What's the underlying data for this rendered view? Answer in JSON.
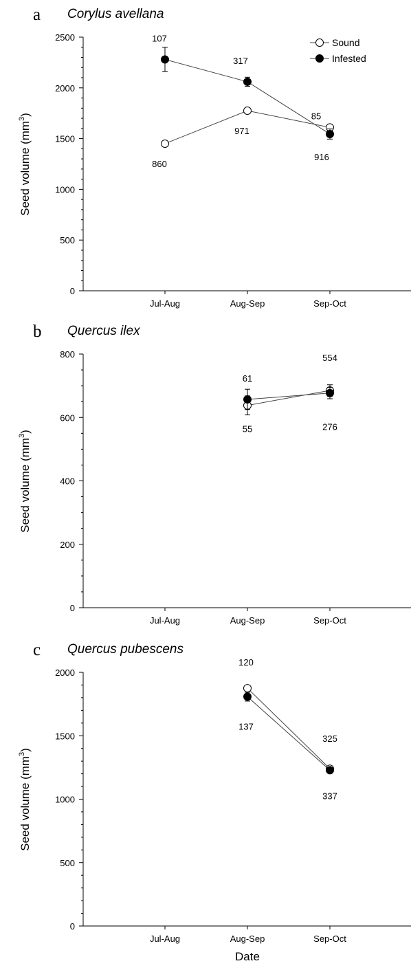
{
  "legend": {
    "sound": "Sound",
    "infested": "Infested"
  },
  "colors": {
    "sound_fill": "#ffffff",
    "infested_fill": "#000000",
    "line": "#444444"
  },
  "chart_data": [
    {
      "panel": "a",
      "title": "Corylus avellana",
      "type": "line",
      "categories": [
        "Jul-Aug",
        "Aug-Sep",
        "Sep-Oct"
      ],
      "ylabel": "Seed volume (mm3)",
      "xlabel": "",
      "ylim": [
        0,
        2500
      ],
      "yticks": [
        0,
        500,
        1000,
        1500,
        2000,
        2500
      ],
      "series": [
        {
          "name": "Sound",
          "values": [
            1450,
            1775,
            1610
          ],
          "errors": [
            15,
            20,
            25
          ],
          "n": [
            "860",
            "971",
            "85"
          ]
        },
        {
          "name": "Infested",
          "values": [
            2280,
            2060,
            1545
          ],
          "errors": [
            120,
            45,
            50
          ],
          "n": [
            "107",
            "317",
            "916"
          ]
        }
      ]
    },
    {
      "panel": "b",
      "title": "Quercus ilex",
      "type": "line",
      "categories": [
        "Jul-Aug",
        "Aug-Sep",
        "Sep-Oct"
      ],
      "ylabel": "Seed volume (mm3)",
      "xlabel": "",
      "ylim": [
        0,
        800
      ],
      "yticks": [
        0,
        200,
        400,
        600,
        800
      ],
      "series": [
        {
          "name": "Sound",
          "values": [
            null,
            638,
            685
          ],
          "errors": [
            null,
            30,
            18
          ],
          "n": [
            "",
            "55",
            "554"
          ]
        },
        {
          "name": "Infested",
          "values": [
            null,
            657,
            677
          ],
          "errors": [
            null,
            32,
            18
          ],
          "n": [
            "",
            "61",
            "276"
          ]
        }
      ]
    },
    {
      "panel": "c",
      "title": "Quercus pubescens",
      "type": "line",
      "categories": [
        "Jul-Aug",
        "Aug-Sep",
        "Sep-Oct"
      ],
      "ylabel": "Seed volume (mm3)",
      "xlabel": "Date",
      "ylim": [
        0,
        2000
      ],
      "yticks": [
        0,
        500,
        1000,
        1500,
        2000
      ],
      "series": [
        {
          "name": "Sound",
          "values": [
            null,
            1875,
            1240
          ],
          "errors": [
            null,
            20,
            15
          ],
          "n": [
            "",
            "120",
            "325"
          ]
        },
        {
          "name": "Infested",
          "values": [
            null,
            1808,
            1228
          ],
          "errors": [
            null,
            35,
            15
          ],
          "n": [
            "",
            "137",
            "337"
          ]
        }
      ]
    }
  ]
}
